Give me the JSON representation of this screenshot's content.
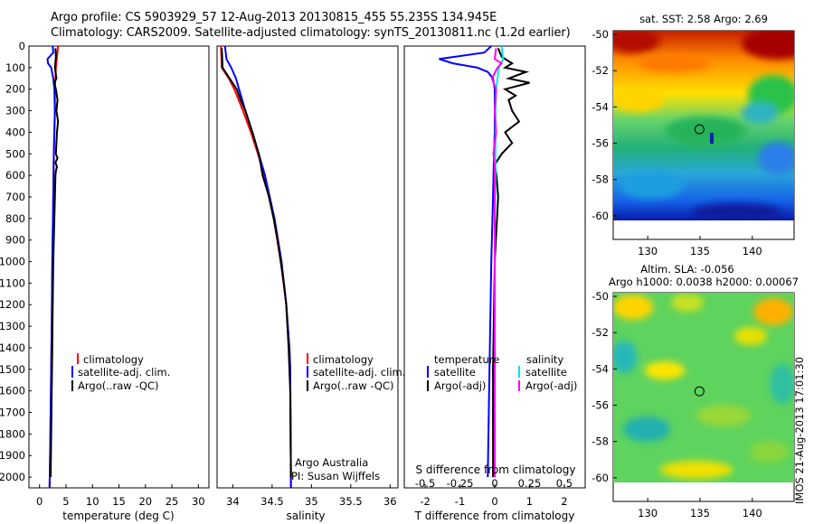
{
  "title_line1": "Argo profile: CS 5903929_57 12-Aug-2013 20130815_455 55.235S 134.945E",
  "title_line2": "Climatology: CARS2009. Satellite-adjusted climatology: synTS_20130811.nc (1.2d earlier)",
  "depth_ticks": [
    "0",
    "100",
    "200",
    "300",
    "400",
    "500",
    "600",
    "700",
    "800",
    "900",
    "1000",
    "1100",
    "1200",
    "1300",
    "1400",
    "1500",
    "1600",
    "1700",
    "1800",
    "1900",
    "2000"
  ],
  "colors": {
    "climatology": "#ff0000",
    "satellite": "#0000ff",
    "argo": "#000000",
    "sal_satellite": "#00e5e5",
    "sal_argo": "#ff00ff"
  },
  "chart_data": [
    {
      "type": "line",
      "panel": "temperature",
      "xlabel": "temperature (deg C)",
      "ylabel": "depth",
      "xlim": [
        -2,
        32
      ],
      "ylim": [
        2050,
        0
      ],
      "x_ticks": [
        "0",
        "5",
        "10",
        "15",
        "20",
        "25",
        "30"
      ],
      "x_tick_values": [
        0,
        5,
        10,
        15,
        20,
        25,
        30
      ],
      "legend": [
        "climatology",
        "satellite-adj. clim.",
        "Argo(..raw -QC)"
      ],
      "series": [
        {
          "name": "climatology",
          "depth": [
            0,
            50,
            100,
            150,
            200,
            300,
            400,
            500,
            700,
            1000,
            1300,
            1500,
            1700,
            1900,
            2050
          ],
          "values": [
            3.5,
            3.3,
            3.1,
            3.0,
            2.9,
            2.9,
            2.8,
            2.7,
            2.6,
            2.45,
            2.3,
            2.2,
            2.1,
            2.0,
            1.9
          ]
        },
        {
          "name": "satellite-adj. clim.",
          "depth": [
            0,
            30,
            60,
            80,
            100,
            150,
            200,
            300,
            400,
            500,
            700,
            1000,
            1300,
            1500,
            1700,
            1900,
            2050
          ],
          "values": [
            2.5,
            2.6,
            1.5,
            1.6,
            2.2,
            2.6,
            2.8,
            2.9,
            2.8,
            2.7,
            2.6,
            2.4,
            2.3,
            2.2,
            2.1,
            2.0,
            1.9
          ]
        },
        {
          "name": "Argo(..raw -QC)",
          "depth": [
            10,
            50,
            100,
            150,
            170,
            200,
            250,
            300,
            350,
            400,
            500,
            520,
            540,
            560,
            580,
            600,
            700,
            800,
            1000,
            1200,
            1400,
            1600,
            1800,
            2000
          ],
          "values": [
            3.0,
            3.1,
            2.9,
            3.2,
            2.8,
            3.1,
            3.4,
            3.2,
            3.5,
            3.3,
            3.1,
            3.4,
            3.0,
            3.3,
            3.1,
            3.0,
            2.9,
            2.8,
            2.6,
            2.5,
            2.4,
            2.3,
            2.2,
            2.1
          ]
        }
      ]
    },
    {
      "type": "line",
      "panel": "salinity",
      "xlabel": "salinity",
      "xlim": [
        33.8,
        36.1
      ],
      "ylim": [
        2050,
        0
      ],
      "x_ticks": [
        "34",
        "34.5",
        "35",
        "35.5",
        "36"
      ],
      "x_tick_values": [
        34,
        34.5,
        35,
        35.5,
        36
      ],
      "legend": [
        "climatology",
        "satellite-adj. clim.",
        "Argo(..raw -QC)"
      ],
      "annotation": [
        "Argo Australia",
        "PI: Susan Wijffels"
      ],
      "series": [
        {
          "name": "climatology",
          "depth": [
            0,
            100,
            150,
            200,
            300,
            400,
            500,
            600,
            800,
            1000,
            1200,
            1400,
            1500,
            2050
          ],
          "values": [
            33.85,
            33.86,
            33.95,
            34.02,
            34.13,
            34.23,
            34.32,
            34.4,
            34.52,
            34.61,
            34.68,
            34.72,
            34.73,
            34.74
          ]
        },
        {
          "name": "satellite-adj. clim.",
          "depth": [
            0,
            60,
            100,
            150,
            200,
            300,
            400,
            500,
            600,
            800,
            1000,
            1200,
            1400,
            1500,
            2050
          ],
          "values": [
            33.9,
            33.92,
            33.98,
            34.04,
            34.08,
            34.16,
            34.25,
            34.33,
            34.41,
            34.53,
            34.62,
            34.68,
            34.72,
            34.73,
            34.74
          ]
        },
        {
          "name": "Argo(..raw -QC)",
          "depth": [
            10,
            100,
            150,
            200,
            250,
            300,
            400,
            500,
            600,
            700,
            800,
            900,
            1000,
            1100,
            1200,
            1400,
            1500,
            1600,
            2000
          ],
          "values": [
            33.86,
            33.87,
            33.96,
            34.05,
            34.1,
            34.16,
            34.25,
            34.33,
            34.38,
            34.46,
            34.52,
            34.57,
            34.61,
            34.65,
            34.68,
            34.71,
            34.72,
            34.73,
            34.74
          ]
        }
      ]
    },
    {
      "type": "line",
      "panel": "difference",
      "xlabel_top": "S difference from climatology",
      "xlabel": "T difference from climatology",
      "xlim": [
        -2.6,
        2.6
      ],
      "ylim": [
        2050,
        0
      ],
      "x_ticks": [
        "-2",
        "-1",
        "0",
        "1",
        "2"
      ],
      "x_tick_values": [
        -2,
        -1,
        0,
        1,
        2
      ],
      "s_ticks": [
        "-0.5",
        "-0.25",
        "0",
        "0.25",
        "0.5"
      ],
      "s_tick_values": [
        -0.5,
        -0.25,
        0,
        0.25,
        0.5
      ],
      "legend": {
        "temperature_header": "temperature",
        "salinity_header": "salinity",
        "t_items": [
          "satellite",
          "Argo(-adj)"
        ],
        "s_items": [
          "satellite",
          "Argo(-adj)"
        ]
      },
      "series": [
        {
          "name": "T satellite",
          "depth": [
            0,
            30,
            60,
            80,
            100,
            120,
            150,
            200,
            300,
            400,
            500,
            700,
            1000,
            1500,
            2000
          ],
          "values": [
            -0.1,
            -0.3,
            -1.6,
            -1.2,
            -0.5,
            -0.2,
            -0.05,
            0.0,
            0.0,
            0.0,
            -0.02,
            -0.05,
            -0.1,
            -0.15,
            -0.2
          ]
        },
        {
          "name": "T Argo(-adj)",
          "depth": [
            10,
            50,
            80,
            100,
            120,
            150,
            170,
            200,
            230,
            250,
            300,
            350,
            400,
            450,
            500,
            550,
            600,
            700,
            1000,
            1500,
            2000
          ],
          "values": [
            0.1,
            0.2,
            0.5,
            0.3,
            0.9,
            0.4,
            1.0,
            0.3,
            0.6,
            0.4,
            0.5,
            0.7,
            0.3,
            0.5,
            0.2,
            0.0,
            0.05,
            0.1,
            0.0,
            -0.05,
            -0.05
          ]
        },
        {
          "name": "S satellite",
          "depth": [
            0,
            60,
            100,
            150,
            200,
            300,
            400,
            500,
            600,
            800,
            1000,
            1500,
            2000
          ],
          "values": [
            0.05,
            0.06,
            0.03,
            0.02,
            0.01,
            0.005,
            0.005,
            0.005,
            0.005,
            0.0,
            0.0,
            0.0,
            0.0
          ]
        },
        {
          "name": "S Argo(-adj)",
          "depth": [
            10,
            60,
            80,
            100,
            150,
            200,
            300,
            400,
            500,
            550,
            600,
            700,
            1000,
            1500,
            2000
          ],
          "values": [
            0.01,
            0.0,
            0.05,
            0.02,
            -0.02,
            0.01,
            0.0,
            0.01,
            -0.01,
            0.0,
            0.0,
            0.0,
            0.0,
            0.0,
            0.0
          ]
        }
      ]
    },
    {
      "type": "heatmap",
      "panel": "sst_map",
      "title": "sat. SST: 2.58  Argo: 2.69",
      "x_ticks": [
        "130",
        "135",
        "140"
      ],
      "x_tick_values": [
        130,
        135,
        140
      ],
      "y_ticks": [
        "-50",
        "-52",
        "-54",
        "-56",
        "-58",
        "-60"
      ],
      "y_tick_values": [
        -50,
        -52,
        -54,
        -56,
        -58,
        -60
      ],
      "xlim": [
        126.7,
        144
      ],
      "ylim": [
        -61.3,
        -49.8
      ],
      "marker": {
        "lon": 134.945,
        "lat": -55.235
      }
    },
    {
      "type": "heatmap",
      "panel": "sla_map",
      "title_line1": "Altim. SLA: -0.056",
      "title_line2": "Argo h1000: 0.0038 h2000: 0.00067",
      "x_ticks": [
        "130",
        "135",
        "140"
      ],
      "x_tick_values": [
        130,
        135,
        140
      ],
      "y_ticks": [
        "-50",
        "-52",
        "-54",
        "-56",
        "-58",
        "-60"
      ],
      "y_tick_values": [
        -50,
        -52,
        -54,
        -56,
        -58,
        -60
      ],
      "xlim": [
        126.7,
        144
      ],
      "ylim": [
        -61.3,
        -49.8
      ],
      "marker": {
        "lon": 134.945,
        "lat": -55.235
      }
    }
  ],
  "credit": "IMOS 21-Aug-2013 17:01:30"
}
